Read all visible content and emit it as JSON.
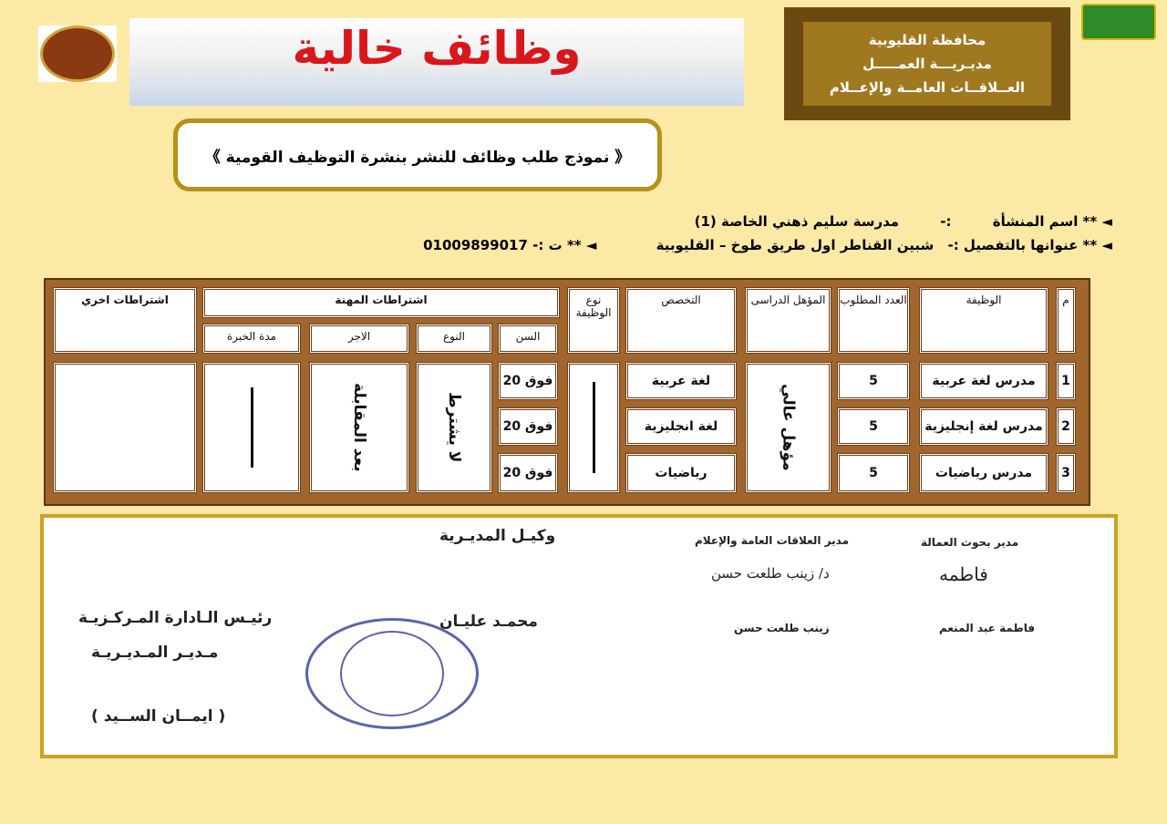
{
  "header": {
    "banner_title": "وظائف خالية",
    "gov_box": [
      "محافظة القليوبية",
      "مديـريـــة العمـــــل",
      "العــلاقــات العامــة والإعــلام"
    ],
    "form_title": "《 نموذج طلب وظائف للنشر بنشرة التوظيف القومية 》"
  },
  "info": {
    "name_label": "◄ ** اسم المنشأة",
    "name_sep": ":-",
    "name_value": "مدرسة سليم ذهني الخاصة (1)",
    "address_label": "◄ ** عنوانها بالتفصيل :-",
    "address_value": "شبين القناطر اول طريق طوخ – القليوبية",
    "phone_label": "◄ ** ت :-",
    "phone_value": "01009899017"
  },
  "table": {
    "headers": {
      "no": "م",
      "job": "الوظيفة",
      "count": "العدد المطلوب",
      "qualification": "المؤهل الدراسى",
      "specialty": "التخصص",
      "job_type": "نوع الوظيفة",
      "profession_reqs": "اشتراطات المهنة",
      "age": "السن",
      "gender": "النوع",
      "salary": "الاجر",
      "experience": "مدة الخبرة",
      "other_reqs": "اشتراطات اخري"
    },
    "rows": [
      {
        "no": "1",
        "job": "مدرس لغة عربية",
        "count": "5",
        "specialty": "لغة عربية",
        "age": "فوق 20"
      },
      {
        "no": "2",
        "job": "مدرس لغة إنجليزية",
        "count": "5",
        "specialty": "لغة انجليزية",
        "age": "فوق 20"
      },
      {
        "no": "3",
        "job": "مدرس رياضيات",
        "count": "5",
        "specialty": "رياضيات",
        "age": "فوق 20"
      }
    ],
    "qualification_value": "مؤهل عالي",
    "gender_value": "لا يشترط",
    "salary_value": "بعد المقابلة"
  },
  "signatures": {
    "labor_director_title": "مدير بحوث العمالة",
    "labor_director_name": "فاطمة عبد المنعم",
    "pr_director_title": "مدير العلاقات العامة والإعلام",
    "pr_director_name": "زينب طلعت حسن",
    "deputy_title": "وكيـل المديـرية",
    "deputy_name": "محمـد عليـان",
    "central_head": "رئيـس الـادارة المـركـزيـة",
    "directorate_head": "مـديـر المـديـريـة",
    "head_name": "( ايمــان الســيد )"
  }
}
